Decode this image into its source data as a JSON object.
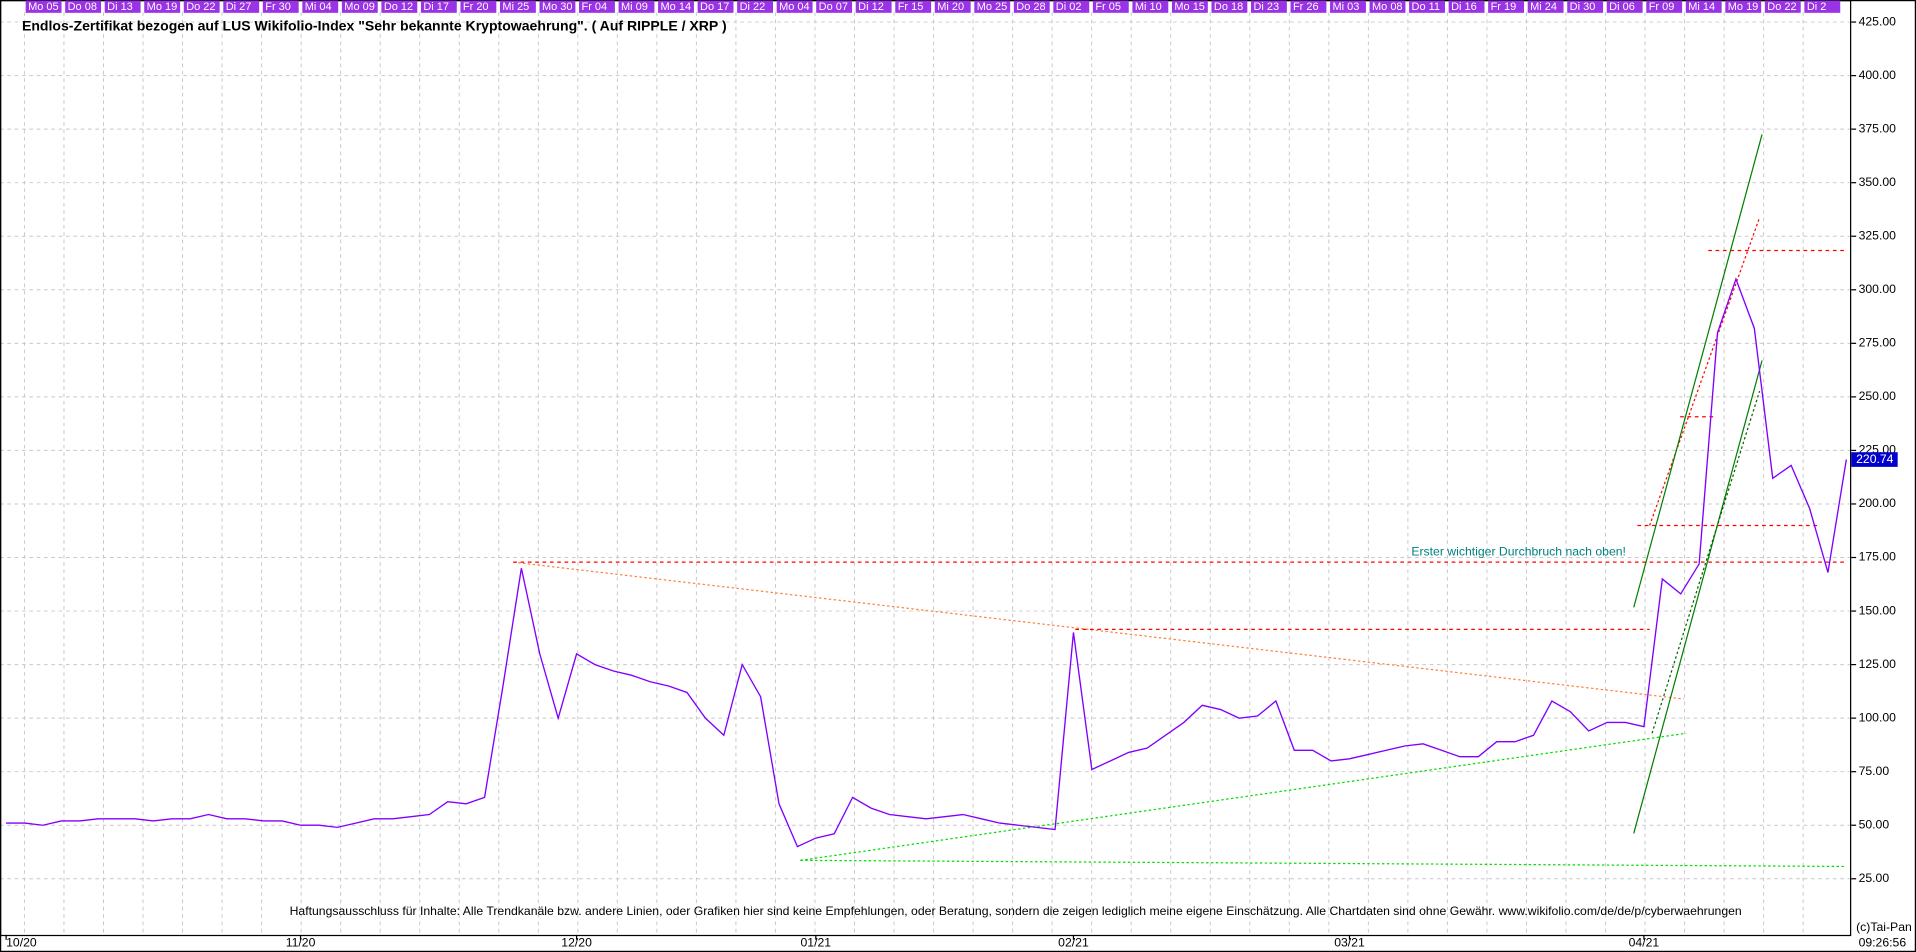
{
  "chart_data": {
    "type": "line",
    "title": "Endlos-Zertifikat bezogen auf LUS Wikifolio-Index \"Sehr bekannte Kryptowaehrung\". ( Auf RIPPLE / XRP )",
    "annotation": "Erster wichtiger Durchbruch nach oben!",
    "disclaimer": "Haftungsausschluss für Inhalte: Alle Trendkanäle bzw. andere Linien, oder Grafiken hier sind keine Empfehlungen, oder Beratung, sondern die zeigen lediglich meine eigene Einschätzung. Alle Chartdaten sind ohne Gewähr.  www.wikifolio.com/de/de/p/cyberwaehrungen",
    "copyright": "(c)Tai-Pan",
    "time": "09:26:56",
    "day_labels": [
      "Mo 05",
      "Do 08",
      "Di 13",
      "Mo 19",
      "Do 22",
      "Di 27",
      "Fr 30",
      "Mi 04",
      "Mo 09",
      "Do 12",
      "Di 17",
      "Fr 20",
      "Mi 25",
      "Mo 30",
      "Fr 04",
      "Mi 09",
      "Mo 14",
      "Do 17",
      "Di 22",
      "Mo 04",
      "Do 07",
      "Di 12",
      "Fr 15",
      "Mi 20",
      "Mo 25",
      "Do 28",
      "Di 02",
      "Fr 05",
      "Mi 10",
      "Mo 15",
      "Do 18",
      "Di 23",
      "Fr 26",
      "Mi 03",
      "Mo 08",
      "Do 11",
      "Di 16",
      "Fr 19",
      "Mi 24",
      "Di 30",
      "Di 06",
      "Fr 09",
      "Mi 14",
      "Mo 19",
      "Do 22",
      "Di 2"
    ],
    "categories": [
      "10/20",
      null,
      null,
      null,
      null,
      null,
      null,
      null,
      null,
      null,
      null,
      null,
      null,
      null,
      null,
      null,
      "11/20",
      null,
      null,
      null,
      null,
      null,
      null,
      null,
      null,
      null,
      null,
      null,
      null,
      null,
      null,
      "12/20",
      null,
      null,
      null,
      null,
      null,
      null,
      null,
      null,
      null,
      null,
      null,
      null,
      "01/21",
      null,
      null,
      null,
      null,
      null,
      null,
      null,
      null,
      null,
      null,
      null,
      null,
      null,
      "02/21",
      null,
      null,
      null,
      null,
      null,
      null,
      null,
      null,
      null,
      null,
      null,
      null,
      null,
      null,
      "03/21",
      null,
      null,
      null,
      null,
      null,
      null,
      null,
      null,
      null,
      null,
      null,
      null,
      null,
      null,
      null,
      "04/21",
      null,
      null,
      null,
      null,
      null,
      null,
      null,
      null,
      null,
      null,
      null
    ],
    "series": [
      {
        "name": "XRP",
        "color": "#8000ff",
        "values": [
          51,
          51,
          50,
          52,
          52,
          53,
          53,
          53,
          52,
          53,
          53,
          55,
          53,
          53,
          52,
          52,
          50,
          50,
          49,
          51,
          53,
          53,
          54,
          55,
          61,
          60,
          63,
          115,
          170,
          130,
          100,
          130,
          125,
          122,
          120,
          117,
          115,
          112,
          100,
          92,
          125,
          110,
          60,
          40,
          44,
          46,
          63,
          58,
          55,
          54,
          53,
          54,
          55,
          53,
          51,
          50,
          49,
          48,
          140,
          76,
          80,
          84,
          86,
          92,
          98,
          106,
          104,
          100,
          101,
          108,
          85,
          85,
          80,
          81,
          83,
          85,
          87,
          88,
          85,
          82,
          82,
          89,
          89,
          92,
          108,
          103,
          94,
          98,
          98,
          96,
          165,
          158,
          172,
          280,
          305,
          282,
          212,
          218,
          198,
          168,
          220.74
        ]
      }
    ],
    "ylim": [
      -1.2,
      435.3
    ],
    "yticks": [
      {
        "value": 25,
        "label": "25.00"
      },
      {
        "value": 50,
        "label": "50.00"
      },
      {
        "value": 75,
        "label": "75.00"
      },
      {
        "value": 100,
        "label": "100.00"
      },
      {
        "value": 125,
        "label": "125.00"
      },
      {
        "value": 150,
        "label": "150.00"
      },
      {
        "value": 175,
        "label": "175.00"
      },
      {
        "value": 200,
        "label": "200.00"
      },
      {
        "value": 225,
        "label": "225.00"
      },
      {
        "value": 250,
        "label": "250.00"
      },
      {
        "value": 275,
        "label": "275.00"
      },
      {
        "value": 300,
        "label": "300.00"
      },
      {
        "value": 325,
        "label": "325.00"
      },
      {
        "value": 350,
        "label": "350.00"
      },
      {
        "value": 375,
        "label": "375.00"
      },
      {
        "value": 400,
        "label": "400.00"
      },
      {
        "value": 425,
        "label": "425.00"
      }
    ],
    "grid": true
  }
}
